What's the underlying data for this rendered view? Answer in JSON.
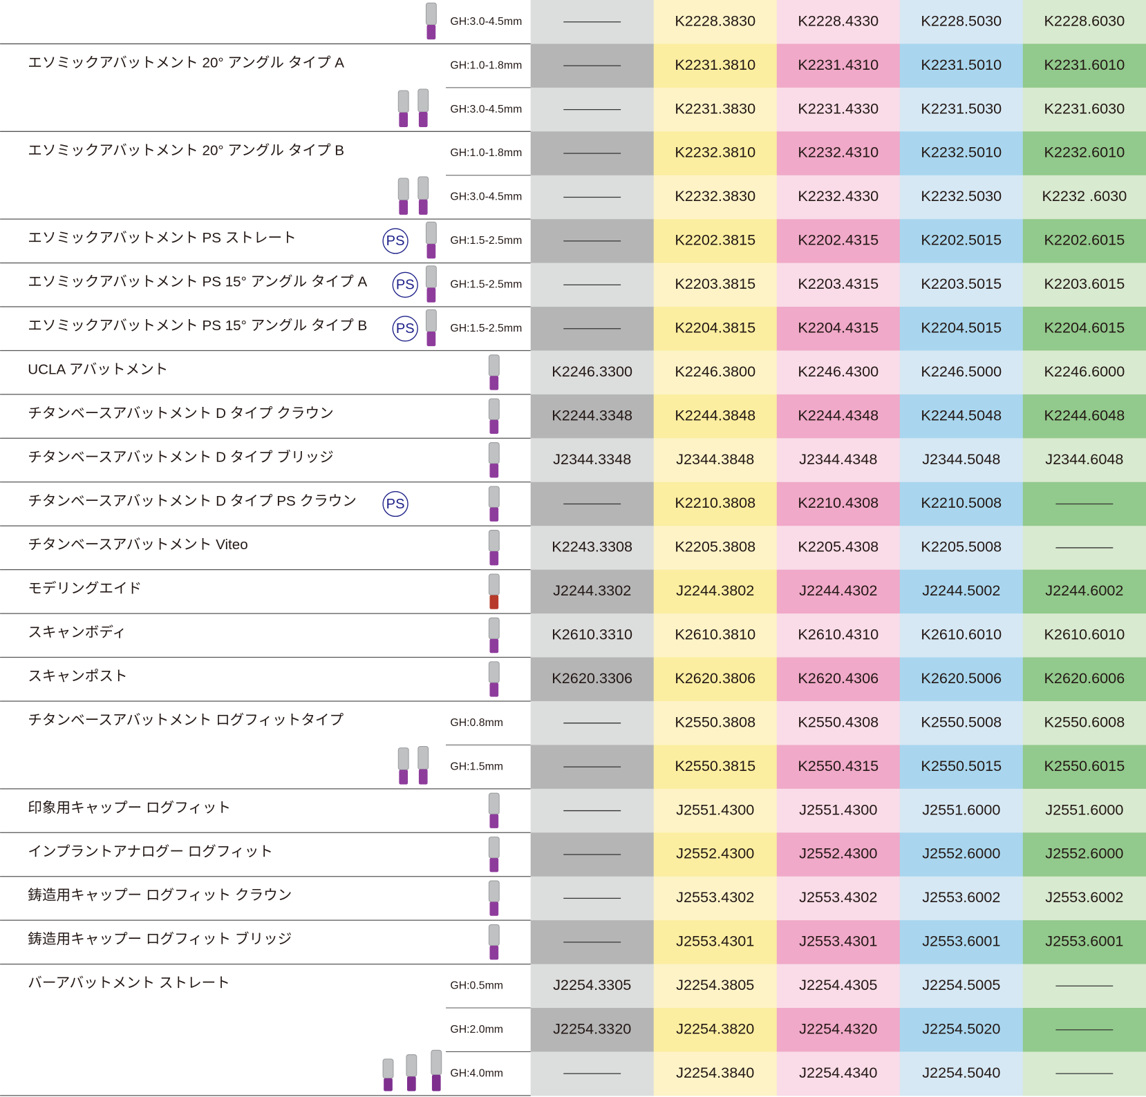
{
  "groups": [
    {
      "rows": [
        {
          "gh": "GH:3.0-4.5mm",
          "codes": [
            null,
            "K2228.3830",
            "K2228.4330",
            "K2228.5030",
            "K2228.6030"
          ]
        }
      ]
    },
    {
      "name": "エソミックアバットメント 20° アングル タイプ A",
      "rows": [
        {
          "gh": "GH:1.0-1.8mm",
          "codes": [
            null,
            "K2231.3810",
            "K2231.4310",
            "K2231.5010",
            "K2231.6010"
          ]
        },
        {
          "gh": "GH:3.0-4.5mm",
          "codes": [
            null,
            "K2231.3830",
            "K2231.4330",
            "K2231.5030",
            "K2231.6030"
          ]
        }
      ]
    },
    {
      "name": "エソミックアバットメント 20° アングル タイプ B",
      "rows": [
        {
          "gh": "GH:1.0-1.8mm",
          "codes": [
            null,
            "K2232.3810",
            "K2232.4310",
            "K2232.5010",
            "K2232.6010"
          ]
        },
        {
          "gh": "GH:3.0-4.5mm",
          "codes": [
            null,
            "K2232.3830",
            "K2232.4330",
            "K2232.5030",
            "K2232 .6030"
          ]
        }
      ]
    },
    {
      "name": "エソミックアバットメント PS ストレート",
      "badge": "PS",
      "rows": [
        {
          "gh": "GH:1.5-2.5mm",
          "codes": [
            null,
            "K2202.3815",
            "K2202.4315",
            "K2202.5015",
            "K2202.6015"
          ]
        }
      ]
    },
    {
      "name": "エソミックアバットメント PS 15° アングル タイプ A",
      "badge": "PS",
      "rows": [
        {
          "gh": "GH:1.5-2.5mm",
          "codes": [
            null,
            "K2203.3815",
            "K2203.4315",
            "K2203.5015",
            "K2203.6015"
          ]
        }
      ]
    },
    {
      "name": "エソミックアバットメント PS 15° アングル タイプ B",
      "badge": "PS",
      "rows": [
        {
          "gh": "GH:1.5-2.5mm",
          "codes": [
            null,
            "K2204.3815",
            "K2204.4315",
            "K2204.5015",
            "K2204.6015"
          ]
        }
      ]
    },
    {
      "name": "UCLA アバットメント",
      "rows": [
        {
          "codes": [
            "K2246.3300",
            "K2246.3800",
            "K2246.4300",
            "K2246.5000",
            "K2246.6000"
          ]
        }
      ]
    },
    {
      "name": "チタンベースアバットメント D タイプ クラウン",
      "rows": [
        {
          "codes": [
            "K2244.3348",
            "K2244.3848",
            "K2244.4348",
            "K2244.5048",
            "K2244.6048"
          ]
        }
      ]
    },
    {
      "name": "チタンベースアバットメント D タイプ ブリッジ",
      "rows": [
        {
          "codes": [
            "J2344.3348",
            "J2344.3848",
            "J2344.4348",
            "J2344.5048",
            "J2344.6048"
          ]
        }
      ]
    },
    {
      "name": "チタンベースアバットメント D タイプ PS クラウン",
      "badge": "PS",
      "rows": [
        {
          "codes": [
            null,
            "K2210.3808",
            "K2210.4308",
            "K2210.5008",
            null
          ]
        }
      ]
    },
    {
      "name": "チタンベースアバットメント Viteo",
      "rows": [
        {
          "codes": [
            "K2243.3308",
            "K2205.3808",
            "K2205.4308",
            "K2205.5008",
            null
          ]
        }
      ]
    },
    {
      "name": "モデリングエイド",
      "rows": [
        {
          "codes": [
            "J2244.3302",
            "J2244.3802",
            "J2244.4302",
            "J2244.5002",
            "J2244.6002"
          ]
        }
      ]
    },
    {
      "name": "スキャンボディ",
      "rows": [
        {
          "codes": [
            "K2610.3310",
            "K2610.3810",
            "K2610.4310",
            "K2610.6010",
            "K2610.6010"
          ]
        }
      ]
    },
    {
      "name": "スキャンポスト",
      "rows": [
        {
          "codes": [
            "K2620.3306",
            "K2620.3806",
            "K2620.4306",
            "K2620.5006",
            "K2620.6006"
          ]
        }
      ]
    },
    {
      "name": "チタンベースアバットメント ログフィットタイプ",
      "rows": [
        {
          "gh": "GH:0.8mm",
          "codes": [
            null,
            "K2550.3808",
            "K2550.4308",
            "K2550.5008",
            "K2550.6008"
          ]
        },
        {
          "gh": "GH:1.5mm",
          "codes": [
            null,
            "K2550.3815",
            "K2550.4315",
            "K2550.5015",
            "K2550.6015"
          ]
        }
      ]
    },
    {
      "name": "印象用キャップー ログフィット",
      "rows": [
        {
          "codes": [
            null,
            "J2551.4300",
            "J2551.4300",
            "J2551.6000",
            "J2551.6000"
          ]
        }
      ]
    },
    {
      "name": "インプラントアナログー ログフィット",
      "rows": [
        {
          "codes": [
            null,
            "J2552.4300",
            "J2552.4300",
            "J2552.6000",
            "J2552.6000"
          ]
        }
      ]
    },
    {
      "name": "鋳造用キャップー ログフィット クラウン",
      "rows": [
        {
          "codes": [
            null,
            "J2553.4302",
            "J2553.4302",
            "J2553.6002",
            "J2553.6002"
          ]
        }
      ]
    },
    {
      "name": "鋳造用キャップー ログフィット ブリッジ",
      "rows": [
        {
          "codes": [
            null,
            "J2553.4301",
            "J2553.4301",
            "J2553.6001",
            "J2553.6001"
          ]
        }
      ]
    },
    {
      "name": "バーアバットメント ストレート",
      "rows": [
        {
          "gh": "GH:0.5mm",
          "codes": [
            "J2254.3305",
            "J2254.3805",
            "J2254.4305",
            "J2254.5005",
            null
          ]
        },
        {
          "gh": "GH:2.0mm",
          "codes": [
            "J2254.3320",
            "J2254.3820",
            "J2254.4320",
            "J2254.5020",
            null
          ]
        },
        {
          "gh": "GH:4.0mm",
          "codes": [
            null,
            "J2254.3840",
            "J2254.4340",
            "J2254.5040",
            null
          ]
        }
      ]
    }
  ]
}
